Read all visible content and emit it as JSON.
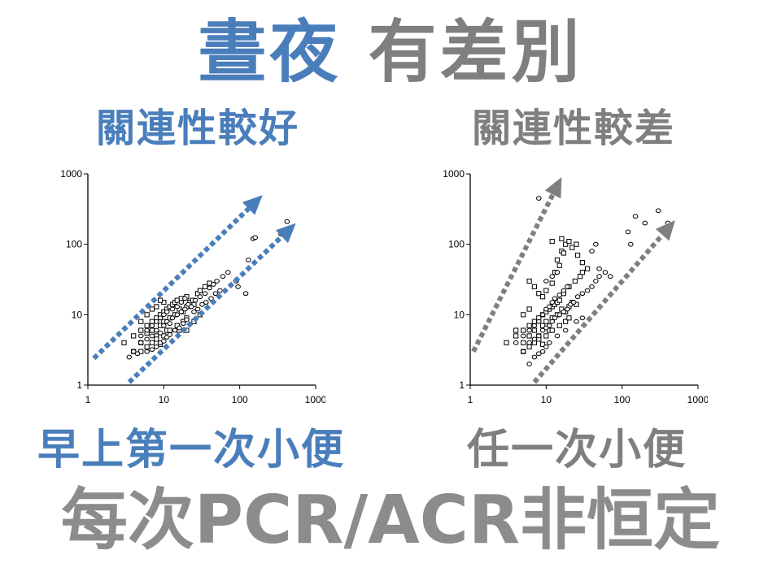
{
  "title": {
    "part1": "晝夜",
    "part2": "有差別"
  },
  "panels": [
    {
      "label": "關連性較好",
      "caption": "早上第一次小便"
    },
    {
      "label": "關連性較差",
      "caption": "任一次小便"
    }
  ],
  "footer": "每次PCR/ACR非恒定",
  "colors": {
    "accent": "#4a7ebb",
    "gray": "#7f7f7f"
  },
  "chart_data": [
    {
      "type": "scatter",
      "x_scale": "log",
      "y_scale": "log",
      "xlim": [
        1,
        1000
      ],
      "ylim": [
        1,
        1000
      ],
      "x_ticks": [
        "1",
        "10",
        "100",
        "1000"
      ],
      "y_ticks": [
        "1",
        "10",
        "100",
        "1000"
      ],
      "arrow_color": "#4a7ebb",
      "arrows": [
        {
          "from": [
            1.2,
            2.4
          ],
          "to": [
            200,
            500
          ]
        },
        {
          "from": [
            3.5,
            1.1
          ],
          "to": [
            550,
            200
          ]
        }
      ],
      "series": [
        {
          "marker": "square",
          "points": [
            [
              5,
              4
            ],
            [
              6,
              5.5
            ],
            [
              7,
              6
            ],
            [
              8,
              5
            ],
            [
              9,
              7
            ],
            [
              10,
              8
            ],
            [
              11,
              6
            ],
            [
              12,
              9
            ],
            [
              14,
              10
            ],
            [
              16,
              12
            ],
            [
              18,
              11
            ],
            [
              20,
              13
            ],
            [
              22,
              15
            ],
            [
              25,
              14
            ],
            [
              7,
              4
            ],
            [
              5,
              3
            ],
            [
              6,
              3.5
            ],
            [
              8,
              4.5
            ],
            [
              9,
              3.8
            ],
            [
              10,
              5
            ],
            [
              12,
              6
            ],
            [
              15,
              7
            ],
            [
              18,
              8
            ],
            [
              20,
              9
            ],
            [
              4,
              5
            ],
            [
              5,
              6
            ],
            [
              6,
              7
            ],
            [
              7,
              8
            ],
            [
              8,
              9
            ],
            [
              9,
              10
            ],
            [
              10,
              11
            ],
            [
              11,
              12
            ],
            [
              12,
              13
            ],
            [
              13,
              14
            ],
            [
              14,
              15
            ],
            [
              15,
              16
            ],
            [
              17,
              17
            ],
            [
              20,
              18
            ],
            [
              24,
              16
            ],
            [
              28,
              20
            ],
            [
              30,
              22
            ],
            [
              35,
              25
            ],
            [
              40,
              28
            ],
            [
              6,
              10
            ],
            [
              7,
              12
            ],
            [
              10,
              15
            ],
            [
              3,
              4
            ],
            [
              4,
              3
            ],
            [
              16,
              6
            ],
            [
              25,
              8
            ],
            [
              30,
              10
            ],
            [
              20,
              6
            ],
            [
              5,
              8
            ],
            [
              8,
              13
            ],
            [
              9,
              16
            ]
          ]
        },
        {
          "marker": "circle",
          "points": [
            [
              4,
              3
            ],
            [
              5,
              4
            ],
            [
              6,
              4.5
            ],
            [
              7,
              5
            ],
            [
              8,
              6
            ],
            [
              9,
              5.5
            ],
            [
              10,
              7
            ],
            [
              11,
              8
            ],
            [
              12,
              7.5
            ],
            [
              13,
              9
            ],
            [
              15,
              10
            ],
            [
              17,
              11
            ],
            [
              19,
              12
            ],
            [
              21,
              14
            ],
            [
              23,
              13
            ],
            [
              26,
              16
            ],
            [
              30,
              18
            ],
            [
              35,
              20
            ],
            [
              40,
              24
            ],
            [
              45,
              27
            ],
            [
              50,
              30
            ],
            [
              90,
              30
            ],
            [
              95,
              25
            ],
            [
              150,
              120
            ],
            [
              160,
              125
            ],
            [
              420,
              210
            ],
            [
              350,
              140
            ],
            [
              130,
              60
            ],
            [
              120,
              20
            ],
            [
              60,
              35
            ],
            [
              70,
              40
            ],
            [
              3.5,
              2.5
            ],
            [
              4.5,
              2.8
            ],
            [
              6,
              3
            ],
            [
              7,
              3.2
            ],
            [
              8,
              3.5
            ],
            [
              9,
              4
            ],
            [
              10,
              4.2
            ],
            [
              11,
              4.8
            ],
            [
              12,
              5.2
            ],
            [
              14,
              6
            ],
            [
              16,
              6.5
            ],
            [
              18,
              7.5
            ],
            [
              20,
              8.5
            ],
            [
              25,
              11
            ],
            [
              28,
              12
            ],
            [
              32,
              14
            ],
            [
              36,
              15
            ],
            [
              42,
              17
            ],
            [
              48,
              20
            ],
            [
              55,
              22
            ],
            [
              5,
              5
            ],
            [
              6,
              6
            ],
            [
              7,
              7
            ],
            [
              8,
              8
            ],
            [
              9,
              9
            ],
            [
              10,
              10
            ],
            [
              11,
              11
            ],
            [
              13,
              12
            ],
            [
              15,
              13
            ],
            [
              17,
              15
            ],
            [
              19,
              17
            ]
          ]
        }
      ]
    },
    {
      "type": "scatter",
      "x_scale": "log",
      "y_scale": "log",
      "xlim": [
        1,
        1000
      ],
      "ylim": [
        1,
        1000
      ],
      "x_ticks": [
        "1",
        "10",
        "100",
        "1000"
      ],
      "y_ticks": [
        "1",
        "10",
        "100",
        "1000"
      ],
      "arrow_color": "#7f7f7f",
      "arrows": [
        {
          "from": [
            1.1,
            3
          ],
          "to": [
            16,
            900
          ]
        },
        {
          "from": [
            7,
            1.1
          ],
          "to": [
            500,
            220
          ]
        }
      ],
      "series": [
        {
          "marker": "square",
          "points": [
            [
              5,
              4
            ],
            [
              6,
              5
            ],
            [
              7,
              6
            ],
            [
              8,
              5
            ],
            [
              9,
              7
            ],
            [
              10,
              8
            ],
            [
              11,
              6
            ],
            [
              12,
              9
            ],
            [
              14,
              10
            ],
            [
              16,
              12
            ],
            [
              18,
              11
            ],
            [
              20,
              13
            ],
            [
              22,
              15
            ],
            [
              25,
              14
            ],
            [
              7,
              4
            ],
            [
              5,
              3
            ],
            [
              6,
              3.5
            ],
            [
              8,
              4.5
            ],
            [
              9,
              3.8
            ],
            [
              10,
              5
            ],
            [
              12,
              6
            ],
            [
              15,
              7
            ],
            [
              18,
              8
            ],
            [
              20,
              9
            ],
            [
              4,
              5
            ],
            [
              5,
              6
            ],
            [
              6,
              7
            ],
            [
              7,
              8
            ],
            [
              8,
              9
            ],
            [
              9,
              10
            ],
            [
              10,
              11
            ],
            [
              11,
              12
            ],
            [
              12,
              13
            ],
            [
              13,
              14
            ],
            [
              14,
              15
            ],
            [
              15,
              16
            ],
            [
              17,
              20
            ],
            [
              20,
              25
            ],
            [
              24,
              30
            ],
            [
              28,
              35
            ],
            [
              30,
              40
            ],
            [
              35,
              45
            ],
            [
              14,
              60
            ],
            [
              16,
              80
            ],
            [
              18,
              100
            ],
            [
              20,
              110
            ],
            [
              6,
              30
            ],
            [
              7,
              25
            ],
            [
              8,
              20
            ],
            [
              9,
              18
            ],
            [
              10,
              22
            ],
            [
              12,
              28
            ],
            [
              13,
              40
            ],
            [
              15,
              50
            ],
            [
              17,
              75
            ],
            [
              22,
              90
            ],
            [
              26,
              70
            ],
            [
              30,
              55
            ],
            [
              12,
              110
            ],
            [
              16,
              120
            ],
            [
              25,
              100
            ],
            [
              5,
              10
            ],
            [
              6,
              12
            ],
            [
              4,
              6
            ],
            [
              3,
              4
            ]
          ]
        },
        {
          "marker": "circle",
          "points": [
            [
              8,
              450
            ],
            [
              150,
              250
            ],
            [
              120,
              150
            ],
            [
              200,
              200
            ],
            [
              300,
              300
            ],
            [
              400,
              200
            ],
            [
              130,
              100
            ],
            [
              60,
              40
            ],
            [
              50,
              45
            ],
            [
              70,
              35
            ],
            [
              45,
              100
            ],
            [
              40,
              80
            ],
            [
              5,
              3
            ],
            [
              6,
              4
            ],
            [
              7,
              4.5
            ],
            [
              8,
              5
            ],
            [
              9,
              6
            ],
            [
              10,
              6.5
            ],
            [
              11,
              7
            ],
            [
              12,
              8
            ],
            [
              13,
              9
            ],
            [
              15,
              10
            ],
            [
              17,
              11
            ],
            [
              19,
              12
            ],
            [
              21,
              14
            ],
            [
              23,
              15
            ],
            [
              26,
              18
            ],
            [
              30,
              20
            ],
            [
              35,
              22
            ],
            [
              40,
              25
            ],
            [
              45,
              30
            ],
            [
              50,
              35
            ],
            [
              4,
              4
            ],
            [
              5,
              5
            ],
            [
              6,
              6
            ],
            [
              7,
              7
            ],
            [
              8,
              8
            ],
            [
              9,
              10
            ],
            [
              10,
              12
            ],
            [
              11,
              13
            ],
            [
              12,
              15
            ],
            [
              13,
              17
            ],
            [
              15,
              19
            ],
            [
              17,
              22
            ],
            [
              19,
              25
            ],
            [
              10,
              30
            ],
            [
              12,
              35
            ],
            [
              14,
              40
            ],
            [
              6,
              2
            ],
            [
              7,
              2.5
            ],
            [
              8,
              2.8
            ],
            [
              9,
              3
            ],
            [
              10,
              3.5
            ],
            [
              11,
              4
            ],
            [
              14,
              5
            ],
            [
              18,
              6
            ],
            [
              25,
              8
            ],
            [
              30,
              9
            ]
          ]
        }
      ]
    }
  ]
}
